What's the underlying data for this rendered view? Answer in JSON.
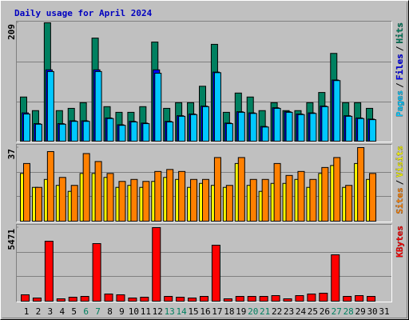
{
  "chart_data": [
    {
      "type": "bar",
      "title": "Daily usage for April 2024",
      "ylim": [
        0,
        209
      ],
      "yticks": [
        209
      ],
      "legend_separator": "/",
      "series": [
        {
          "name": "Hits",
          "color": "#008060",
          "values": [
            78,
            54,
            209,
            54,
            58,
            68,
            182,
            61,
            51,
            51,
            61,
            175,
            58,
            68,
            68,
            97,
            171,
            51,
            85,
            78,
            54,
            68,
            54,
            54,
            68,
            86,
            155,
            68,
            68,
            58,
            null
          ]
        },
        {
          "name": "Files",
          "color": "#0000ff",
          "values": [
            50,
            31,
            126,
            31,
            36,
            36,
            126,
            41,
            29,
            35,
            32,
            126,
            35,
            45,
            48,
            62,
            122,
            32,
            52,
            50,
            26,
            59,
            52,
            48,
            50,
            62,
            108,
            45,
            41,
            39,
            null
          ]
        },
        {
          "name": "Pages",
          "color": "#00c8ff",
          "values": [
            48,
            30,
            123,
            30,
            35,
            35,
            123,
            40,
            28,
            34,
            31,
            120,
            34,
            44,
            47,
            61,
            121,
            31,
            51,
            49,
            25,
            58,
            51,
            47,
            49,
            61,
            107,
            44,
            40,
            38,
            null
          ]
        }
      ]
    },
    {
      "type": "bar",
      "ylim": [
        0,
        37
      ],
      "yticks": [
        37
      ],
      "legend_separator": "/",
      "series": [
        {
          "name": "Visits",
          "color": "#ffff00",
          "values": [
            24,
            17,
            21,
            18,
            15,
            24,
            24,
            22,
            17,
            18,
            17,
            20,
            22,
            21,
            17,
            19,
            18,
            17,
            29,
            18,
            15,
            19,
            19,
            21,
            17,
            24,
            28,
            17,
            29,
            21,
            null
          ]
        },
        {
          "name": "Sites",
          "color": "#ff8000",
          "values": [
            29,
            17,
            35,
            22,
            18,
            34,
            30,
            24,
            20,
            21,
            20,
            25,
            26,
            25,
            21,
            21,
            32,
            18,
            32,
            21,
            21,
            29,
            23,
            25,
            21,
            27,
            32,
            18,
            37,
            24,
            null
          ]
        }
      ]
    },
    {
      "type": "bar",
      "ylim": [
        0,
        5471
      ],
      "yticks": [
        5471
      ],
      "categories": [
        "1",
        "2",
        "3",
        "4",
        "5",
        "6",
        "7",
        "8",
        "9",
        "10",
        "11",
        "12",
        "13",
        "14",
        "15",
        "16",
        "17",
        "18",
        "19",
        "20",
        "21",
        "22",
        "23",
        "24",
        "25",
        "26",
        "27",
        "28",
        "29",
        "30",
        "31"
      ],
      "category_colors": [
        "#000000",
        "#000000",
        "#000000",
        "#000000",
        "#000000",
        "#008060",
        "#008060",
        "#000000",
        "#000000",
        "#000000",
        "#000000",
        "#000000",
        "#008060",
        "#008060",
        "#000000",
        "#000000",
        "#000000",
        "#000000",
        "#000000",
        "#008060",
        "#008060",
        "#000000",
        "#000000",
        "#000000",
        "#000000",
        "#000000",
        "#008060",
        "#008060",
        "#000000",
        "#000000",
        "#000000"
      ],
      "series": [
        {
          "name": "KBytes",
          "color": "#ff0000",
          "values": [
            476,
            238,
            4460,
            178,
            297,
            357,
            4282,
            535,
            476,
            238,
            297,
            5471,
            357,
            297,
            238,
            357,
            4163,
            178,
            357,
            357,
            357,
            416,
            178,
            416,
            535,
            594,
            3449,
            357,
            416,
            357,
            null
          ]
        }
      ]
    }
  ]
}
